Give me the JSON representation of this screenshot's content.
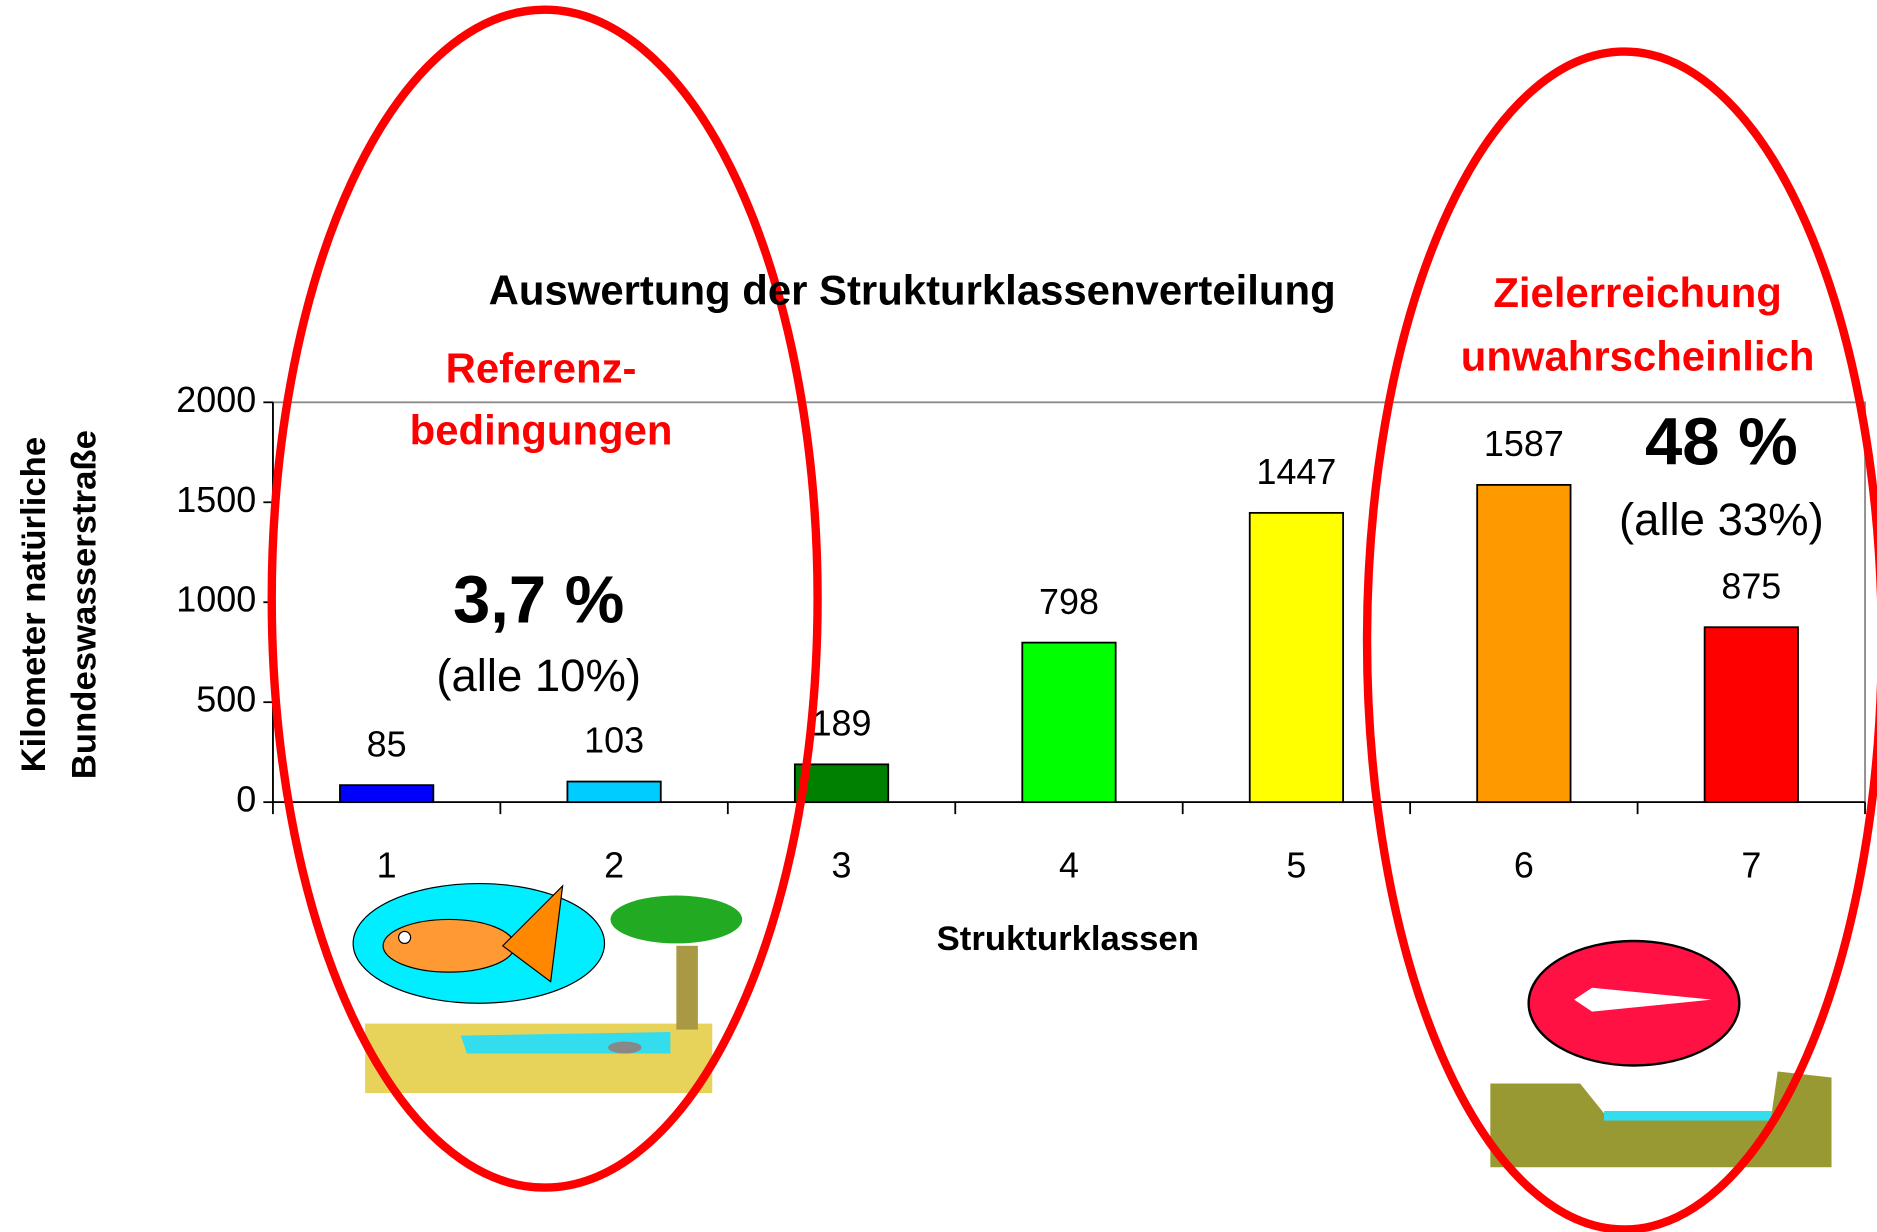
{
  "chart_data": {
    "type": "bar",
    "title": "Auswertung der Strukturklassenverteilung",
    "categories": [
      "1",
      "2",
      "3",
      "4",
      "5",
      "6",
      "7"
    ],
    "values": [
      85,
      103,
      189,
      798,
      1447,
      1587,
      875
    ],
    "colors": [
      "#0000ff",
      "#00ccff",
      "#008000",
      "#00ff00",
      "#ffff00",
      "#ff9900",
      "#ff0000"
    ],
    "ylim": [
      0,
      2000
    ],
    "yticks": [
      0,
      500,
      1000,
      1500,
      2000
    ],
    "xlabel": "Strukturklassen",
    "ylabel": [
      "Kilometer natürliche",
      "Bundeswasserstraße"
    ],
    "annotations": {
      "left_heading": [
        "Referenz-",
        "bedingungen"
      ],
      "left_share": "3,7 %",
      "left_note": "(alle 10%)",
      "right_heading": [
        "Zielerreichung",
        "unwahrscheinlich"
      ],
      "right_share": "48 %",
      "right_note": "(alle 33%)"
    }
  }
}
